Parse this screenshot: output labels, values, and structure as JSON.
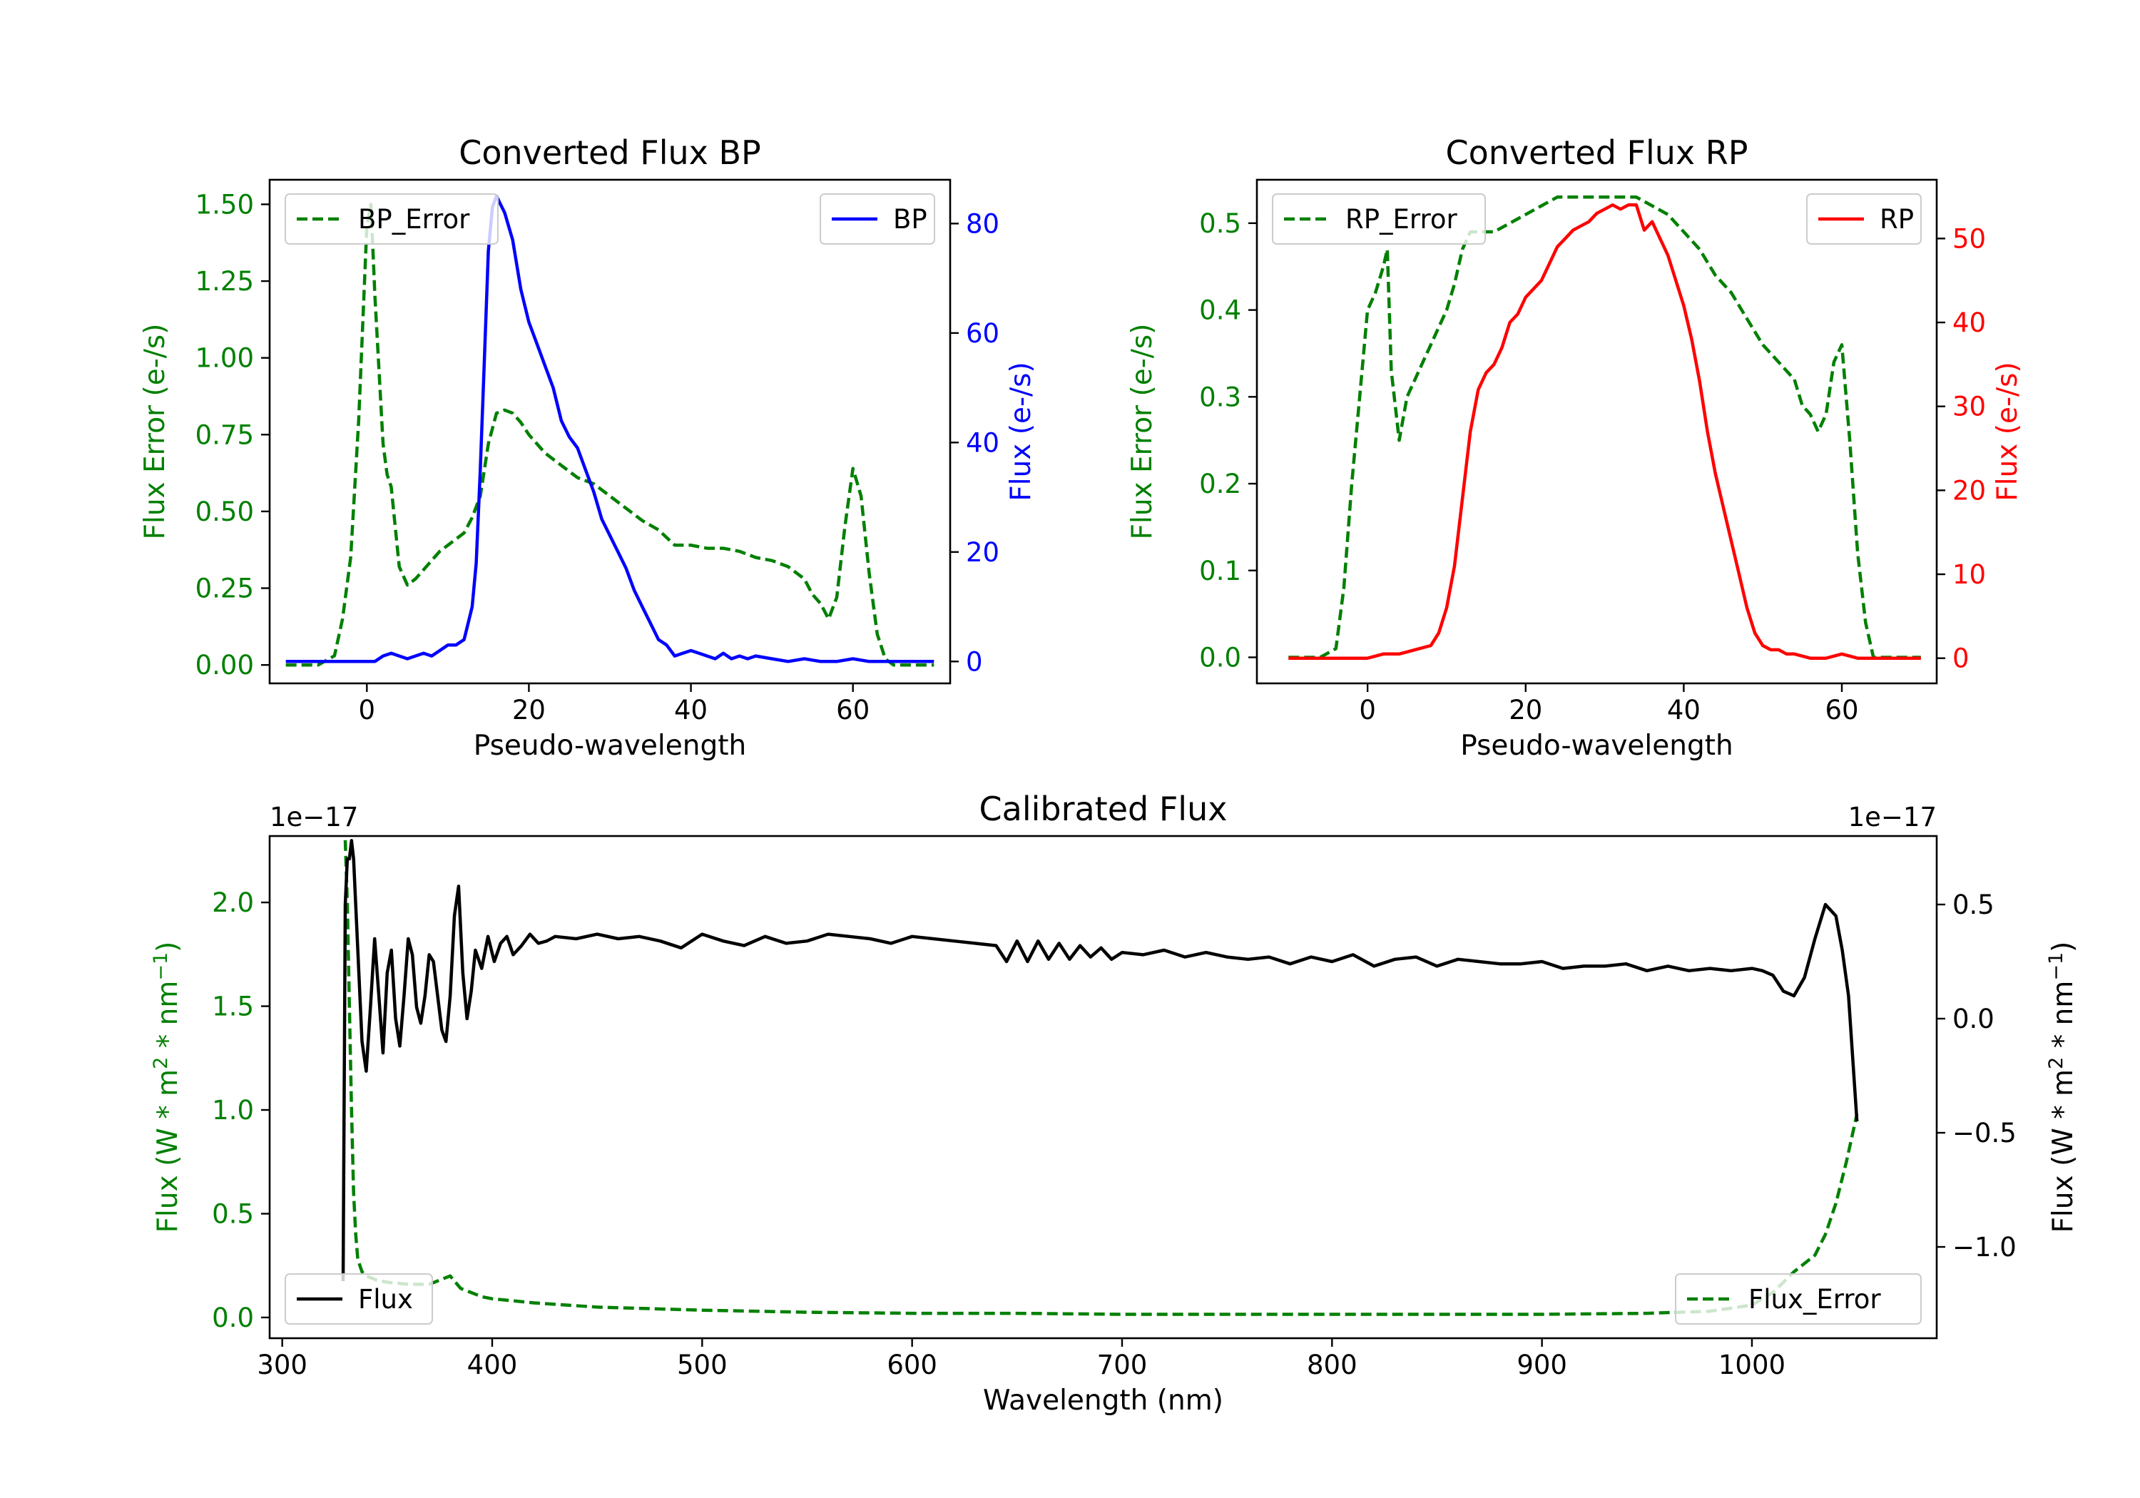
{
  "chart_data": [
    {
      "type": "line",
      "title": "Converted Flux BP",
      "xlabel": "Pseudo-wavelength",
      "xlim": [
        -12,
        72
      ],
      "xticks": [
        "0",
        "20",
        "40",
        "60"
      ],
      "left_axis": {
        "label": "Flux Error (e-/s)",
        "color": "#008000",
        "ylim": [
          -0.06,
          1.58
        ],
        "ticks": [
          "0.00",
          "0.25",
          "0.50",
          "0.75",
          "1.00",
          "1.25",
          "1.50"
        ]
      },
      "right_axis": {
        "label": "Flux (e-/s)",
        "color": "#0000ff",
        "ylim": [
          -4,
          88
        ],
        "ticks": [
          "0",
          "20",
          "40",
          "60",
          "80"
        ]
      },
      "series": [
        {
          "name": "BP_Error",
          "axis": "left",
          "style": "dashed",
          "color": "#008000",
          "legend": "top-left",
          "x": [
            -10,
            -6,
            -4,
            -3,
            -2,
            -1,
            0,
            0.5,
            1,
            2,
            2.5,
            3,
            4,
            5,
            6,
            7,
            8,
            9,
            10,
            12,
            13,
            14,
            15,
            16,
            17,
            18,
            19,
            20,
            22,
            24,
            26,
            28,
            30,
            32,
            34,
            36,
            38,
            40,
            42,
            44,
            46,
            48,
            50,
            52,
            54,
            55,
            56,
            57,
            58,
            59,
            60,
            61,
            62,
            63,
            64,
            65,
            70
          ],
          "y": [
            0.0,
            0.0,
            0.03,
            0.15,
            0.35,
            0.8,
            1.43,
            1.5,
            1.2,
            0.72,
            0.62,
            0.58,
            0.32,
            0.26,
            0.28,
            0.31,
            0.34,
            0.37,
            0.39,
            0.43,
            0.48,
            0.55,
            0.72,
            0.82,
            0.83,
            0.82,
            0.79,
            0.75,
            0.69,
            0.65,
            0.61,
            0.59,
            0.55,
            0.51,
            0.47,
            0.44,
            0.39,
            0.39,
            0.38,
            0.38,
            0.37,
            0.35,
            0.34,
            0.32,
            0.28,
            0.23,
            0.2,
            0.15,
            0.22,
            0.45,
            0.64,
            0.55,
            0.3,
            0.1,
            0.02,
            0.0,
            0.0
          ]
        },
        {
          "name": "BP",
          "axis": "right",
          "style": "solid",
          "color": "#0000ff",
          "legend": "top-right",
          "x": [
            -10,
            -4,
            -2,
            0,
            1,
            2,
            3,
            4,
            5,
            6,
            7,
            8,
            9,
            10,
            11,
            12,
            12.5,
            13,
            13.5,
            14,
            14.5,
            15,
            15.5,
            16,
            17,
            18,
            19,
            20,
            21,
            22,
            23,
            24,
            25,
            26,
            27,
            28,
            29,
            30,
            31,
            32,
            33,
            34,
            35,
            36,
            37,
            38,
            39,
            40,
            41,
            42,
            43,
            44,
            45,
            46,
            47,
            48,
            50,
            52,
            54,
            56,
            58,
            60,
            62,
            66,
            70
          ],
          "y": [
            0,
            0,
            0,
            0,
            0,
            1,
            1.5,
            1,
            0.5,
            1,
            1.5,
            1,
            2,
            3,
            3,
            4,
            7,
            10,
            18,
            35,
            55,
            75,
            83,
            85,
            82,
            77,
            68,
            62,
            58,
            54,
            50,
            44,
            41,
            39,
            35,
            31,
            26,
            23,
            20,
            17,
            13,
            10,
            7,
            4,
            3,
            1,
            1.5,
            2,
            1.5,
            1,
            0.5,
            1.5,
            0.5,
            1,
            0.5,
            1,
            0.5,
            0,
            0.5,
            0,
            0,
            0.5,
            0,
            0,
            0
          ]
        }
      ]
    },
    {
      "type": "line",
      "title": "Converted Flux RP",
      "xlabel": "Pseudo-wavelength",
      "xlim": [
        -14,
        72
      ],
      "xticks": [
        "0",
        "20",
        "40",
        "60"
      ],
      "left_axis": {
        "label": "Flux Error (e-/s)",
        "color": "#008000",
        "ylim": [
          -0.03,
          0.55
        ],
        "ticks": [
          "0.0",
          "0.1",
          "0.2",
          "0.3",
          "0.4",
          "0.5"
        ]
      },
      "right_axis": {
        "label": "Flux (e-/s)",
        "color": "#ff0000",
        "ylim": [
          -3,
          57
        ],
        "ticks": [
          "0",
          "10",
          "20",
          "30",
          "40",
          "50"
        ]
      },
      "series": [
        {
          "name": "RP_Error",
          "axis": "left",
          "style": "dashed",
          "color": "#008000",
          "legend": "top-left",
          "x": [
            -10,
            -6,
            -4,
            -3,
            -2,
            -1,
            0,
            1,
            2,
            2.5,
            3,
            4,
            5,
            6,
            7,
            8,
            9,
            10,
            11,
            12,
            13,
            14,
            16,
            18,
            20,
            22,
            24,
            26,
            28,
            30,
            32,
            34,
            36,
            38,
            40,
            42,
            44,
            46,
            48,
            50,
            52,
            54,
            55,
            56,
            57,
            58,
            59,
            60,
            61,
            62,
            63,
            64,
            70
          ],
          "y": [
            0.0,
            0.0,
            0.01,
            0.08,
            0.2,
            0.3,
            0.4,
            0.42,
            0.45,
            0.47,
            0.33,
            0.25,
            0.3,
            0.32,
            0.34,
            0.36,
            0.38,
            0.4,
            0.43,
            0.47,
            0.49,
            0.49,
            0.49,
            0.5,
            0.51,
            0.52,
            0.53,
            0.53,
            0.53,
            0.53,
            0.53,
            0.53,
            0.52,
            0.51,
            0.49,
            0.47,
            0.44,
            0.42,
            0.39,
            0.36,
            0.34,
            0.32,
            0.29,
            0.28,
            0.26,
            0.28,
            0.34,
            0.36,
            0.25,
            0.12,
            0.04,
            0.0,
            0.0
          ]
        },
        {
          "name": "RP",
          "axis": "right",
          "style": "solid",
          "color": "#ff0000",
          "legend": "top-right",
          "x": [
            -10,
            -4,
            0,
            2,
            4,
            6,
            8,
            9,
            10,
            11,
            12,
            13,
            14,
            15,
            16,
            17,
            18,
            19,
            20,
            21,
            22,
            23,
            24,
            25,
            26,
            27,
            28,
            29,
            30,
            31,
            32,
            33,
            34,
            35,
            36,
            37,
            38,
            39,
            40,
            41,
            42,
            43,
            44,
            45,
            46,
            47,
            48,
            49,
            50,
            51,
            52,
            53,
            54,
            56,
            58,
            60,
            62,
            66,
            70
          ],
          "y": [
            0,
            0,
            0,
            0.5,
            0.5,
            1,
            1.5,
            3,
            6,
            11,
            19,
            27,
            32,
            34,
            35,
            37,
            40,
            41,
            43,
            44,
            45,
            47,
            49,
            50,
            51,
            51.5,
            52,
            53,
            53.5,
            54,
            53.5,
            54,
            54,
            51,
            52,
            50,
            48,
            45,
            42,
            38,
            33,
            27,
            22,
            18,
            14,
            10,
            6,
            3,
            1.5,
            1,
            1,
            0.5,
            0.5,
            0,
            0,
            0.5,
            0,
            0,
            0
          ]
        }
      ]
    },
    {
      "type": "line",
      "title": "Calibrated Flux",
      "xlabel": "Wavelength (nm)",
      "xlim": [
        294,
        1088
      ],
      "xticks": [
        "300",
        "400",
        "500",
        "600",
        "700",
        "800",
        "900",
        "1000"
      ],
      "left_axis": {
        "label": "Flux (W * m2 * nm-1)",
        "color": "#008000",
        "offset": "1e−17",
        "ylim": [
          -0.1,
          2.32
        ],
        "ticks": [
          "0.0",
          "0.5",
          "1.0",
          "1.5",
          "2.0"
        ]
      },
      "right_axis": {
        "label": "Flux (W * m2 * nm-1)",
        "color": "#000000",
        "offset": "1e−17",
        "ylim": [
          -1.4,
          0.8
        ],
        "ticks": [
          "−1.0",
          "−0.5",
          "0.0",
          "0.5"
        ]
      },
      "series": [
        {
          "name": "Flux_Error",
          "axis": "left",
          "style": "dashed",
          "color": "#008000",
          "legend": "bottom-right",
          "x": [
            330,
            331,
            332,
            333,
            334,
            335,
            336,
            338,
            340,
            345,
            350,
            360,
            370,
            380,
            385,
            390,
            395,
            400,
            420,
            450,
            500,
            550,
            600,
            650,
            700,
            750,
            800,
            850,
            900,
            950,
            980,
            1000,
            1010,
            1020,
            1030,
            1035,
            1040,
            1045,
            1050
          ],
          "y": [
            2.3,
            2.0,
            1.5,
            1.0,
            0.6,
            0.4,
            0.28,
            0.22,
            0.2,
            0.18,
            0.17,
            0.16,
            0.16,
            0.2,
            0.14,
            0.12,
            0.1,
            0.09,
            0.07,
            0.05,
            0.035,
            0.025,
            0.02,
            0.02,
            0.015,
            0.015,
            0.015,
            0.015,
            0.015,
            0.02,
            0.03,
            0.06,
            0.12,
            0.22,
            0.3,
            0.4,
            0.55,
            0.75,
            0.98
          ]
        },
        {
          "name": "Flux",
          "axis": "right",
          "style": "solid",
          "color": "#000000",
          "legend": "bottom-left",
          "x": [
            329,
            330,
            331,
            332,
            333,
            334,
            336,
            338,
            340,
            342,
            344,
            346,
            348,
            350,
            352,
            354,
            356,
            358,
            360,
            362,
            364,
            366,
            368,
            370,
            372,
            374,
            376,
            378,
            380,
            382,
            384,
            386,
            388,
            390,
            392,
            395,
            398,
            401,
            404,
            407,
            410,
            414,
            418,
            422,
            426,
            430,
            440,
            450,
            460,
            470,
            480,
            490,
            500,
            510,
            520,
            530,
            540,
            550,
            560,
            570,
            580,
            590,
            600,
            610,
            620,
            630,
            640,
            645,
            650,
            655,
            660,
            665,
            670,
            675,
            680,
            685,
            690,
            695,
            700,
            710,
            720,
            730,
            740,
            750,
            760,
            770,
            780,
            790,
            800,
            810,
            820,
            830,
            840,
            850,
            860,
            870,
            880,
            890,
            900,
            910,
            920,
            930,
            940,
            950,
            960,
            970,
            980,
            990,
            1000,
            1005,
            1010,
            1015,
            1020,
            1025,
            1030,
            1035,
            1040,
            1043,
            1046,
            1050
          ],
          "y": [
            -1.15,
            0.5,
            0.7,
            0.7,
            0.78,
            0.7,
            0.3,
            -0.1,
            -0.23,
            0.05,
            0.35,
            0.1,
            -0.15,
            0.2,
            0.3,
            0.0,
            -0.12,
            0.1,
            0.35,
            0.28,
            0.05,
            -0.02,
            0.1,
            0.28,
            0.25,
            0.1,
            -0.05,
            -0.1,
            0.1,
            0.45,
            0.58,
            0.2,
            0.0,
            0.12,
            0.3,
            0.22,
            0.36,
            0.25,
            0.33,
            0.36,
            0.28,
            0.32,
            0.37,
            0.33,
            0.34,
            0.36,
            0.35,
            0.37,
            0.35,
            0.36,
            0.34,
            0.31,
            0.37,
            0.34,
            0.32,
            0.36,
            0.33,
            0.34,
            0.37,
            0.36,
            0.35,
            0.33,
            0.36,
            0.35,
            0.34,
            0.33,
            0.32,
            0.25,
            0.34,
            0.25,
            0.34,
            0.26,
            0.33,
            0.26,
            0.32,
            0.27,
            0.31,
            0.26,
            0.29,
            0.28,
            0.3,
            0.27,
            0.29,
            0.27,
            0.26,
            0.27,
            0.24,
            0.27,
            0.25,
            0.28,
            0.23,
            0.26,
            0.27,
            0.23,
            0.26,
            0.25,
            0.24,
            0.24,
            0.25,
            0.22,
            0.23,
            0.23,
            0.24,
            0.21,
            0.23,
            0.21,
            0.22,
            0.21,
            0.22,
            0.21,
            0.19,
            0.12,
            0.1,
            0.18,
            0.35,
            0.5,
            0.45,
            0.3,
            0.1,
            -0.45
          ]
        }
      ]
    }
  ]
}
